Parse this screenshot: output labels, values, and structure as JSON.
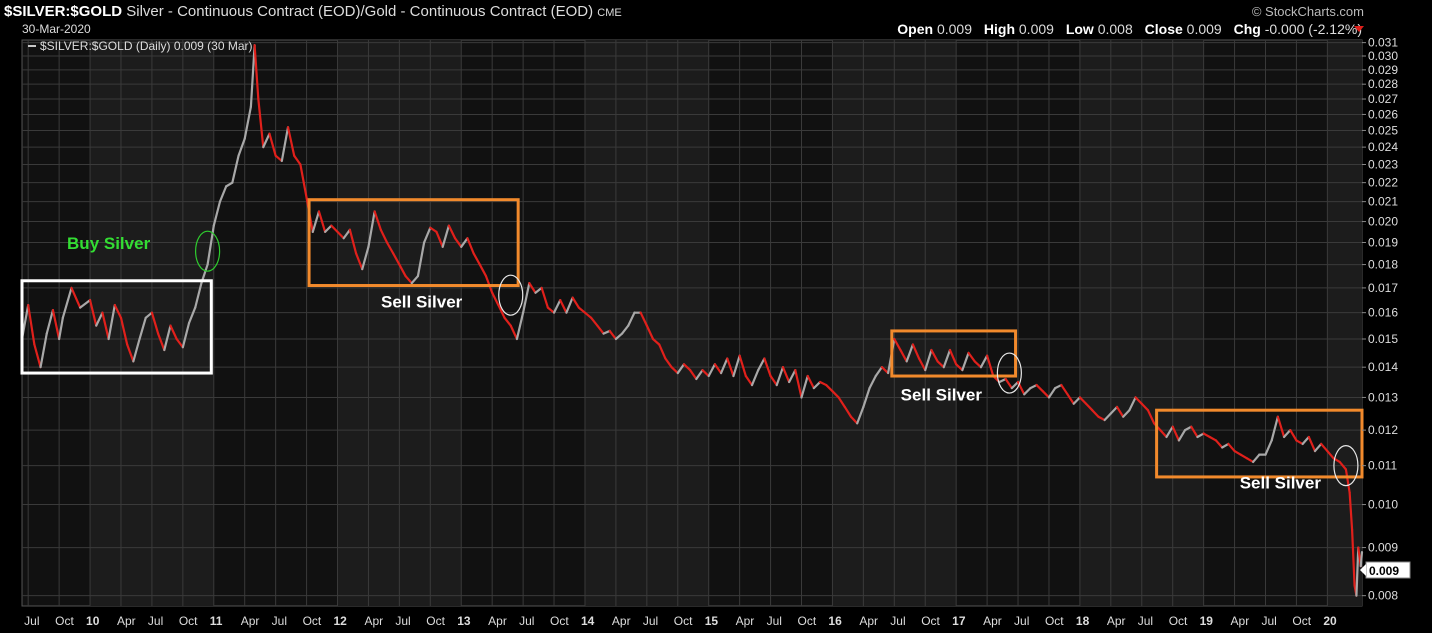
{
  "header": {
    "symbol": "$SILVER:$GOLD",
    "description": "Silver - Continuous Contract (EOD)/Gold - Continuous Contract (EOD)",
    "exchange": "CME",
    "date": "30-Mar-2020",
    "brand": "© StockCharts.com",
    "open_label": "Open",
    "open": "0.009",
    "high_label": "High",
    "high": "0.009",
    "low_label": "Low",
    "low": "0.008",
    "close_label": "Close",
    "close": "0.009",
    "chg_label": "Chg",
    "chg": "-0.000 (-2.12%)"
  },
  "legend_text": "$SILVER:$GOLD (Daily) 0.009 (30 Mar)",
  "last_value_tag": "0.009",
  "colors": {
    "up": "#a8a8a8",
    "down": "#e0201b",
    "grid": "#3a3a3a",
    "highlight_box": "#f28a2c",
    "base_box": "#ffffff",
    "buy_circle": "#2ecc2e",
    "buy_text": "#33dd33"
  },
  "chart_data": {
    "type": "line",
    "title": "$SILVER:$GOLD",
    "xlabel": "",
    "ylabel": "",
    "ylim": [
      0.0078,
      0.0312
    ],
    "log_scale": true,
    "grid": true,
    "y_ticks": [
      "0.031",
      "0.030",
      "0.029",
      "0.028",
      "0.027",
      "0.026",
      "0.025",
      "0.024",
      "0.023",
      "0.022",
      "0.021",
      "0.020",
      "0.019",
      "0.018",
      "0.017",
      "0.016",
      "0.015",
      "0.014",
      "0.013",
      "0.012",
      "0.011",
      "0.010",
      "0.009",
      "0.008"
    ],
    "x_ticks": [
      "Jul",
      "Oct",
      "10",
      "Apr",
      "Jul",
      "Oct",
      "11",
      "Apr",
      "Jul",
      "Oct",
      "12",
      "Apr",
      "Jul",
      "Oct",
      "13",
      "Apr",
      "Jul",
      "Oct",
      "14",
      "Apr",
      "Jul",
      "Oct",
      "15",
      "Apr",
      "Jul",
      "Oct",
      "16",
      "Apr",
      "Jul",
      "Oct",
      "17",
      "Apr",
      "Jul",
      "Oct",
      "18",
      "Apr",
      "Jul",
      "Oct",
      "19",
      "Apr",
      "Jul",
      "Oct",
      "20"
    ],
    "x_range": [
      2009.45,
      2020.28
    ],
    "series": [
      {
        "values": [
          [
            2009.45,
            0.015
          ],
          [
            2009.5,
            0.0163
          ],
          [
            2009.55,
            0.0148
          ],
          [
            2009.6,
            0.014
          ],
          [
            2009.65,
            0.0152
          ],
          [
            2009.7,
            0.0161
          ],
          [
            2009.75,
            0.015
          ],
          [
            2009.78,
            0.0158
          ],
          [
            2009.85,
            0.017
          ],
          [
            2009.92,
            0.0162
          ],
          [
            2010.0,
            0.0165
          ],
          [
            2010.05,
            0.0155
          ],
          [
            2010.1,
            0.016
          ],
          [
            2010.15,
            0.015
          ],
          [
            2010.2,
            0.0163
          ],
          [
            2010.25,
            0.0158
          ],
          [
            2010.3,
            0.0148
          ],
          [
            2010.35,
            0.0142
          ],
          [
            2010.4,
            0.015
          ],
          [
            2010.45,
            0.0158
          ],
          [
            2010.5,
            0.016
          ],
          [
            2010.55,
            0.0152
          ],
          [
            2010.6,
            0.0146
          ],
          [
            2010.65,
            0.0155
          ],
          [
            2010.7,
            0.015
          ],
          [
            2010.75,
            0.0147
          ],
          [
            2010.8,
            0.0156
          ],
          [
            2010.85,
            0.0162
          ],
          [
            2010.9,
            0.0172
          ],
          [
            2010.95,
            0.018
          ],
          [
            2011.0,
            0.0198
          ],
          [
            2011.05,
            0.021
          ],
          [
            2011.1,
            0.0218
          ],
          [
            2011.15,
            0.022
          ],
          [
            2011.2,
            0.0235
          ],
          [
            2011.25,
            0.0245
          ],
          [
            2011.3,
            0.0265
          ],
          [
            2011.33,
            0.0308
          ],
          [
            2011.36,
            0.027
          ],
          [
            2011.4,
            0.024
          ],
          [
            2011.45,
            0.0248
          ],
          [
            2011.5,
            0.0235
          ],
          [
            2011.55,
            0.0232
          ],
          [
            2011.6,
            0.0252
          ],
          [
            2011.65,
            0.0235
          ],
          [
            2011.7,
            0.023
          ],
          [
            2011.75,
            0.0212
          ],
          [
            2011.8,
            0.0195
          ],
          [
            2011.85,
            0.0205
          ],
          [
            2011.9,
            0.0195
          ],
          [
            2011.95,
            0.0198
          ],
          [
            2012.0,
            0.0195
          ],
          [
            2012.05,
            0.0192
          ],
          [
            2012.1,
            0.0196
          ],
          [
            2012.15,
            0.0185
          ],
          [
            2012.2,
            0.0178
          ],
          [
            2012.25,
            0.0188
          ],
          [
            2012.3,
            0.0205
          ],
          [
            2012.35,
            0.0196
          ],
          [
            2012.4,
            0.019
          ],
          [
            2012.45,
            0.0185
          ],
          [
            2012.5,
            0.018
          ],
          [
            2012.55,
            0.0175
          ],
          [
            2012.6,
            0.0172
          ],
          [
            2012.65,
            0.0175
          ],
          [
            2012.7,
            0.019
          ],
          [
            2012.75,
            0.0197
          ],
          [
            2012.8,
            0.0195
          ],
          [
            2012.85,
            0.0188
          ],
          [
            2012.9,
            0.0198
          ],
          [
            2012.95,
            0.0192
          ],
          [
            2013.0,
            0.0188
          ],
          [
            2013.05,
            0.0192
          ],
          [
            2013.1,
            0.0185
          ],
          [
            2013.15,
            0.018
          ],
          [
            2013.2,
            0.0175
          ],
          [
            2013.25,
            0.0168
          ],
          [
            2013.3,
            0.0163
          ],
          [
            2013.35,
            0.0158
          ],
          [
            2013.4,
            0.0155
          ],
          [
            2013.45,
            0.015
          ],
          [
            2013.5,
            0.016
          ],
          [
            2013.55,
            0.0172
          ],
          [
            2013.6,
            0.0168
          ],
          [
            2013.65,
            0.017
          ],
          [
            2013.7,
            0.0162
          ],
          [
            2013.75,
            0.016
          ],
          [
            2013.8,
            0.0165
          ],
          [
            2013.85,
            0.016
          ],
          [
            2013.9,
            0.0166
          ],
          [
            2013.95,
            0.0162
          ],
          [
            2014.0,
            0.016
          ],
          [
            2014.05,
            0.0158
          ],
          [
            2014.1,
            0.0155
          ],
          [
            2014.15,
            0.0152
          ],
          [
            2014.2,
            0.0153
          ],
          [
            2014.25,
            0.015
          ],
          [
            2014.3,
            0.0152
          ],
          [
            2014.35,
            0.0155
          ],
          [
            2014.4,
            0.016
          ],
          [
            2014.45,
            0.016
          ],
          [
            2014.5,
            0.0155
          ],
          [
            2014.55,
            0.015
          ],
          [
            2014.6,
            0.0148
          ],
          [
            2014.65,
            0.0143
          ],
          [
            2014.7,
            0.014
          ],
          [
            2014.75,
            0.0138
          ],
          [
            2014.8,
            0.0141
          ],
          [
            2014.85,
            0.0139
          ],
          [
            2014.9,
            0.0136
          ],
          [
            2014.95,
            0.0139
          ],
          [
            2015.0,
            0.0137
          ],
          [
            2015.05,
            0.0141
          ],
          [
            2015.1,
            0.0138
          ],
          [
            2015.15,
            0.0143
          ],
          [
            2015.2,
            0.0137
          ],
          [
            2015.25,
            0.0144
          ],
          [
            2015.3,
            0.0137
          ],
          [
            2015.35,
            0.0134
          ],
          [
            2015.4,
            0.0139
          ],
          [
            2015.45,
            0.0143
          ],
          [
            2015.5,
            0.0137
          ],
          [
            2015.55,
            0.0134
          ],
          [
            2015.6,
            0.014
          ],
          [
            2015.65,
            0.0135
          ],
          [
            2015.7,
            0.0139
          ],
          [
            2015.75,
            0.013
          ],
          [
            2015.8,
            0.0137
          ],
          [
            2015.85,
            0.0133
          ],
          [
            2015.9,
            0.0135
          ],
          [
            2015.95,
            0.0134
          ],
          [
            2016.0,
            0.0132
          ],
          [
            2016.05,
            0.013
          ],
          [
            2016.1,
            0.0127
          ],
          [
            2016.15,
            0.0124
          ],
          [
            2016.2,
            0.0122
          ],
          [
            2016.25,
            0.0127
          ],
          [
            2016.3,
            0.0133
          ],
          [
            2016.35,
            0.0137
          ],
          [
            2016.4,
            0.014
          ],
          [
            2016.45,
            0.0138
          ],
          [
            2016.5,
            0.015
          ],
          [
            2016.55,
            0.0146
          ],
          [
            2016.6,
            0.0142
          ],
          [
            2016.65,
            0.0148
          ],
          [
            2016.7,
            0.0143
          ],
          [
            2016.75,
            0.0139
          ],
          [
            2016.8,
            0.0146
          ],
          [
            2016.85,
            0.0142
          ],
          [
            2016.9,
            0.014
          ],
          [
            2016.95,
            0.0146
          ],
          [
            2017.0,
            0.0141
          ],
          [
            2017.05,
            0.0139
          ],
          [
            2017.1,
            0.0145
          ],
          [
            2017.15,
            0.0142
          ],
          [
            2017.2,
            0.014
          ],
          [
            2017.25,
            0.0144
          ],
          [
            2017.3,
            0.0137
          ],
          [
            2017.35,
            0.0135
          ],
          [
            2017.4,
            0.0136
          ],
          [
            2017.45,
            0.0133
          ],
          [
            2017.5,
            0.0135
          ],
          [
            2017.55,
            0.0131
          ],
          [
            2017.6,
            0.0133
          ],
          [
            2017.65,
            0.0134
          ],
          [
            2017.7,
            0.0132
          ],
          [
            2017.75,
            0.013
          ],
          [
            2017.8,
            0.0133
          ],
          [
            2017.85,
            0.0134
          ],
          [
            2017.9,
            0.0131
          ],
          [
            2017.95,
            0.0128
          ],
          [
            2018.0,
            0.013
          ],
          [
            2018.05,
            0.0128
          ],
          [
            2018.1,
            0.0126
          ],
          [
            2018.15,
            0.0124
          ],
          [
            2018.2,
            0.0123
          ],
          [
            2018.25,
            0.0125
          ],
          [
            2018.3,
            0.0127
          ],
          [
            2018.35,
            0.0124
          ],
          [
            2018.4,
            0.0126
          ],
          [
            2018.45,
            0.013
          ],
          [
            2018.5,
            0.0128
          ],
          [
            2018.55,
            0.0126
          ],
          [
            2018.6,
            0.0122
          ],
          [
            2018.65,
            0.012
          ],
          [
            2018.7,
            0.0118
          ],
          [
            2018.75,
            0.0121
          ],
          [
            2018.8,
            0.0117
          ],
          [
            2018.85,
            0.012
          ],
          [
            2018.9,
            0.0121
          ],
          [
            2018.95,
            0.0118
          ],
          [
            2019.0,
            0.0119
          ],
          [
            2019.05,
            0.0118
          ],
          [
            2019.1,
            0.0117
          ],
          [
            2019.15,
            0.0115
          ],
          [
            2019.2,
            0.0116
          ],
          [
            2019.25,
            0.0114
          ],
          [
            2019.3,
            0.0113
          ],
          [
            2019.35,
            0.0112
          ],
          [
            2019.4,
            0.0111
          ],
          [
            2019.45,
            0.0113
          ],
          [
            2019.5,
            0.0113
          ],
          [
            2019.55,
            0.0117
          ],
          [
            2019.6,
            0.0124
          ],
          [
            2019.65,
            0.0118
          ],
          [
            2019.7,
            0.012
          ],
          [
            2019.75,
            0.0117
          ],
          [
            2019.8,
            0.0116
          ],
          [
            2019.85,
            0.0118
          ],
          [
            2019.9,
            0.0114
          ],
          [
            2019.95,
            0.0116
          ],
          [
            2020.0,
            0.0114
          ],
          [
            2020.05,
            0.0112
          ],
          [
            2020.1,
            0.0111
          ],
          [
            2020.15,
            0.0109
          ],
          [
            2020.18,
            0.0103
          ],
          [
            2020.2,
            0.0094
          ],
          [
            2020.22,
            0.0082
          ],
          [
            2020.235,
            0.008
          ],
          [
            2020.25,
            0.009
          ],
          [
            2020.27,
            0.0086
          ],
          [
            2020.28,
            0.0089
          ]
        ]
      }
    ],
    "annotations": [
      {
        "type": "box",
        "color": "base",
        "x0": 2009.45,
        "x1": 2010.98,
        "y0": 0.0138,
        "y1": 0.0173
      },
      {
        "type": "box",
        "color": "highlight",
        "x0": 2011.77,
        "x1": 2013.46,
        "y0": 0.0171,
        "y1": 0.0211
      },
      {
        "type": "box",
        "color": "highlight",
        "x0": 2016.48,
        "x1": 2017.48,
        "y0": 0.0137,
        "y1": 0.0153
      },
      {
        "type": "box",
        "color": "highlight",
        "x0": 2018.62,
        "x1": 2020.28,
        "y0": 0.0107,
        "y1": 0.0126
      },
      {
        "type": "circle",
        "color": "buy",
        "x": 2010.95,
        "y": 0.0186
      },
      {
        "type": "circle",
        "color": "sell",
        "x": 2013.4,
        "y": 0.0167
      },
      {
        "type": "circle",
        "color": "sell",
        "x": 2017.43,
        "y": 0.0138
      },
      {
        "type": "circle",
        "color": "sell",
        "x": 2020.15,
        "y": 0.011
      }
    ],
    "labels": [
      {
        "text": "Buy Silver",
        "color": "buy",
        "x": 2010.15,
        "y": 0.0187
      },
      {
        "text": "Sell Silver",
        "color": "white",
        "x": 2012.68,
        "y": 0.0162
      },
      {
        "text": "Sell Silver",
        "color": "white",
        "x": 2016.88,
        "y": 0.0129
      },
      {
        "text": "Sell Silver",
        "color": "white",
        "x": 2019.62,
        "y": 0.0104
      }
    ]
  }
}
